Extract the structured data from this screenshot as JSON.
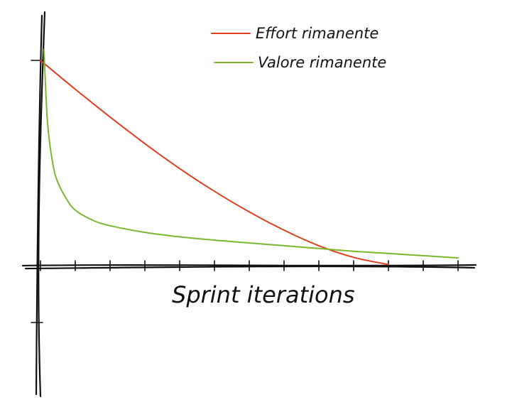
{
  "chart_data": {
    "type": "line",
    "xlabel": "Sprint iterations",
    "ylabel": "",
    "xlim": [
      0,
      12
    ],
    "ylim": [
      -1,
      3.8
    ],
    "grid": false,
    "legend_position": "top-right",
    "x_ticks": [
      0,
      1,
      2,
      3,
      4,
      5,
      6,
      7,
      8,
      9,
      10,
      11,
      12
    ],
    "y_ticks": [
      -1,
      3.8
    ],
    "series": [
      {
        "name": "Effort rimanente",
        "color": "#e0401e",
        "x": [
          0,
          1,
          2,
          3,
          4,
          5,
          6,
          7,
          8,
          9,
          10
        ],
        "y": [
          3.7,
          3.18,
          2.68,
          2.2,
          1.75,
          1.34,
          0.97,
          0.64,
          0.36,
          0.15,
          0.02
        ]
      },
      {
        "name": "Valore rimanente",
        "color": "#7cb82f",
        "x": [
          0.1,
          0.2,
          0.35,
          0.5,
          0.75,
          1,
          1.5,
          2,
          3,
          4,
          5,
          6,
          7,
          8,
          9,
          10,
          11,
          12
        ],
        "y": [
          3.9,
          2.6,
          1.85,
          1.5,
          1.2,
          1.0,
          0.82,
          0.72,
          0.6,
          0.52,
          0.46,
          0.41,
          0.36,
          0.31,
          0.26,
          0.22,
          0.18,
          0.14
        ]
      }
    ]
  }
}
